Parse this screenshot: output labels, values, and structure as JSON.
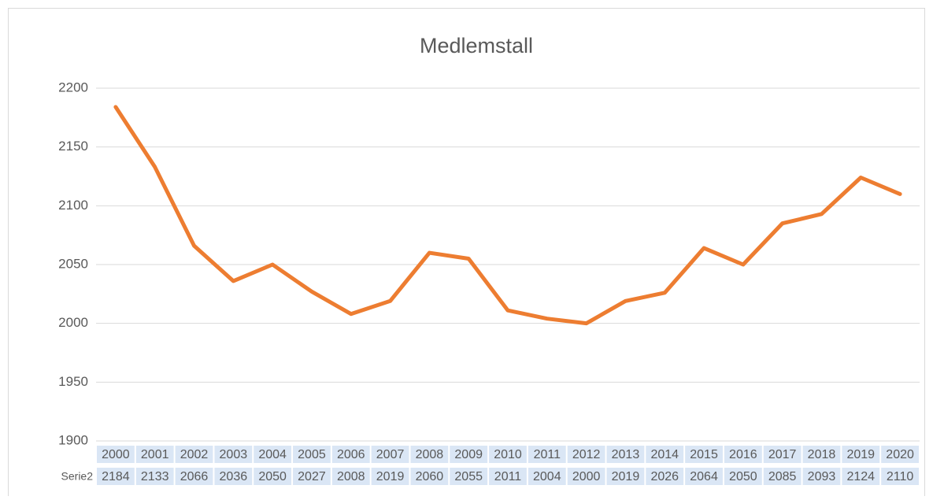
{
  "chart_data": {
    "type": "line",
    "title": "Medlemstall",
    "categories": [
      "2000",
      "2001",
      "2002",
      "2003",
      "2004",
      "2005",
      "2006",
      "2007",
      "2008",
      "2009",
      "2010",
      "2011",
      "2012",
      "2013",
      "2014",
      "2015",
      "2016",
      "2017",
      "2018",
      "2019",
      "2020"
    ],
    "series": [
      {
        "name": "Serie2",
        "color": "#ed7d31",
        "values": [
          2184,
          2133,
          2066,
          2036,
          2050,
          2027,
          2008,
          2019,
          2060,
          2055,
          2011,
          2004,
          2000,
          2019,
          2026,
          2064,
          2050,
          2085,
          2093,
          2124,
          2110
        ]
      }
    ],
    "ylim": [
      1900,
      2200
    ],
    "yticks": [
      1900,
      1950,
      2000,
      2050,
      2100,
      2150,
      2200
    ],
    "grid": true,
    "data_table": true
  }
}
